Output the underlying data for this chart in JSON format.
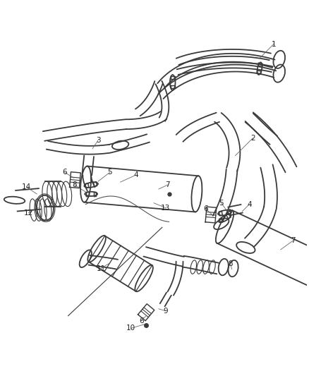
{
  "background_color": "#ffffff",
  "line_color": "#3a3a3a",
  "fig_width": 4.38,
  "fig_height": 5.33,
  "dpi": 100,
  "label_font_size": 7.5,
  "pipe_lw": 1.3,
  "thin_lw": 0.8
}
